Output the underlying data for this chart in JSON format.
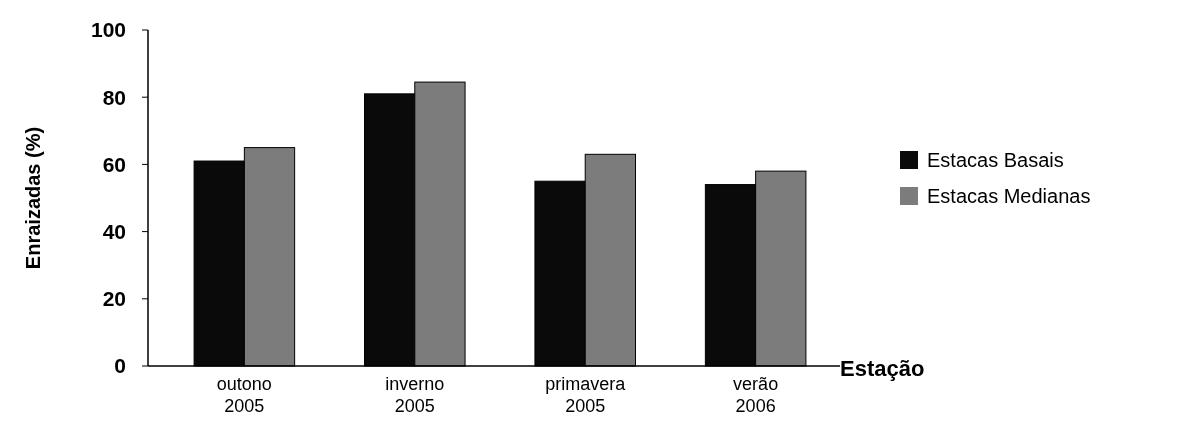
{
  "chart_data": {
    "type": "bar",
    "categories": [
      "outono 2005",
      "inverno 2005",
      "primavera 2005",
      "verão 2006"
    ],
    "series": [
      {
        "name": "Estacas Basais",
        "color": "#0a0a0a",
        "values": [
          61,
          81,
          55,
          54
        ]
      },
      {
        "name": "Estacas Medianas",
        "color": "#7c7c7c",
        "values": [
          65,
          84.5,
          63,
          58
        ]
      }
    ],
    "ylabel": "Enraizadas (%)",
    "xlabel": "Estação",
    "ylim": [
      0,
      100
    ],
    "yticks": [
      0,
      20,
      40,
      60,
      80,
      100
    ],
    "legend": "right"
  }
}
